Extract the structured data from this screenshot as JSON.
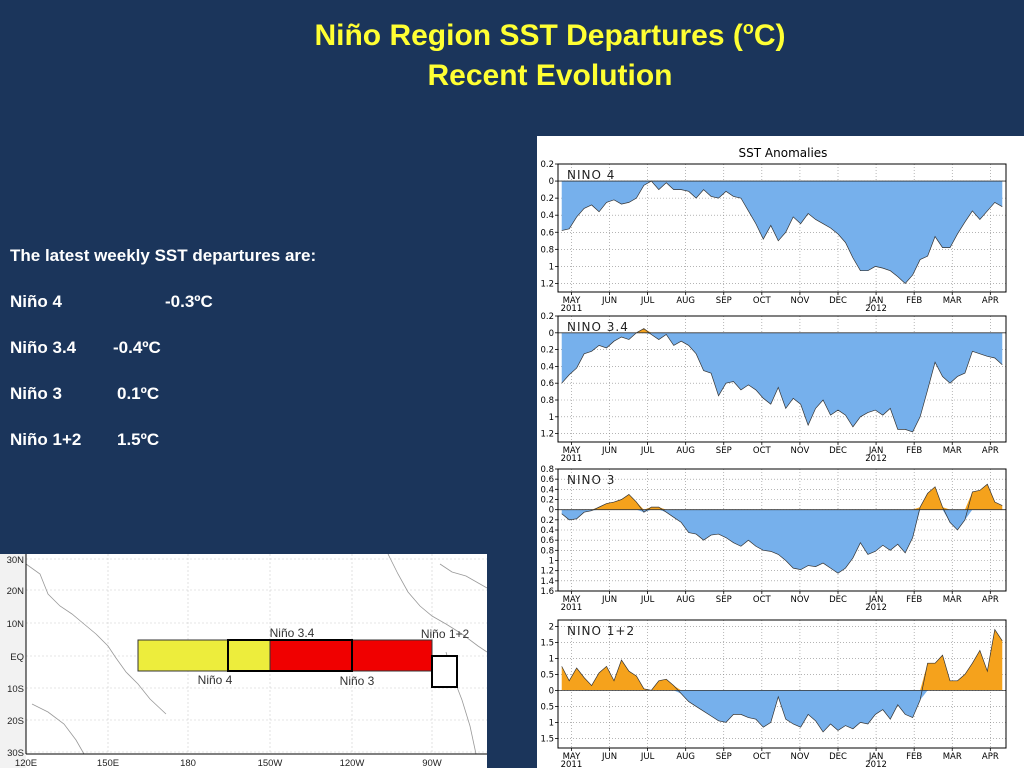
{
  "slide": {
    "title_main": "Niño Region SST Departures (",
    "title_sup": "o",
    "title_end": "C)",
    "subtitle": "Recent Evolution",
    "intro": "The latest weekly SST departures are:",
    "regions": [
      {
        "name": "Niño 4",
        "value": "-0.3ºC"
      },
      {
        "name": "Niño 3.4",
        "value": "-0.4ºC"
      },
      {
        "name": "Niño 3",
        "value": "0.1ºC"
      },
      {
        "name": "Niño 1+2",
        "value": "1.5ºC"
      }
    ]
  },
  "colors": {
    "positive": "#f5a21c",
    "negative": "#76b0ec",
    "background": "#1b355b",
    "title": "#ffff33"
  },
  "chart_data": [
    {
      "type": "area",
      "title": "SST Anomalies",
      "panel_label": "NINO 4",
      "x_ticks": [
        "MAY",
        "JUN",
        "JUL",
        "AUG",
        "SEP",
        "OCT",
        "NOV",
        "DEC",
        "JAN",
        "FEB",
        "MAR",
        "APR"
      ],
      "x_year_labels": [
        {
          "tick": "MAY",
          "year": "2011"
        },
        {
          "tick": "JAN",
          "year": "2012"
        }
      ],
      "y_ticks": [
        0.2,
        0,
        -0.2,
        -0.4,
        -0.6,
        -0.8,
        -1,
        -1.2
      ],
      "y_tick_labels": [
        "0.2",
        "0",
        "0.2",
        "0.4",
        "0.6",
        "0.8",
        "1",
        "1.2"
      ],
      "ylim": [
        -1.3,
        0.2
      ],
      "grid": true,
      "weeks": [
        "2011-05-04",
        "2012-04-25"
      ],
      "values": [
        -0.58,
        -0.56,
        -0.42,
        -0.32,
        -0.28,
        -0.36,
        -0.25,
        -0.22,
        -0.27,
        -0.25,
        -0.2,
        -0.05,
        0.0,
        -0.1,
        -0.02,
        -0.1,
        -0.1,
        -0.12,
        -0.2,
        -0.1,
        -0.18,
        -0.2,
        -0.12,
        -0.18,
        -0.2,
        -0.35,
        -0.5,
        -0.68,
        -0.52,
        -0.7,
        -0.6,
        -0.42,
        -0.5,
        -0.38,
        -0.45,
        -0.5,
        -0.55,
        -0.62,
        -0.72,
        -0.9,
        -1.05,
        -1.05,
        -1.0,
        -1.02,
        -1.05,
        -1.12,
        -1.2,
        -1.1,
        -0.92,
        -0.88,
        -0.65,
        -0.78,
        -0.78,
        -0.62,
        -0.48,
        -0.35,
        -0.45,
        -0.35,
        -0.25,
        -0.3
      ]
    },
    {
      "type": "area",
      "panel_label": "NINO 3.4",
      "x_ticks": [
        "MAY",
        "JUN",
        "JUL",
        "AUG",
        "SEP",
        "OCT",
        "NOV",
        "DEC",
        "JAN",
        "FEB",
        "MAR",
        "APR"
      ],
      "x_year_labels": [
        {
          "tick": "MAY",
          "year": "2011"
        },
        {
          "tick": "JAN",
          "year": "2012"
        }
      ],
      "y_ticks": [
        0.2,
        0,
        -0.2,
        -0.4,
        -0.6,
        -0.8,
        -1,
        -1.2
      ],
      "y_tick_labels": [
        "0.2",
        "0",
        "0.2",
        "0.4",
        "0.6",
        "0.8",
        "1",
        "1.2"
      ],
      "ylim": [
        -1.3,
        0.2
      ],
      "grid": true,
      "weeks": [
        "2011-05-04",
        "2012-04-25"
      ],
      "values": [
        -0.6,
        -0.5,
        -0.42,
        -0.25,
        -0.22,
        -0.15,
        -0.18,
        -0.1,
        -0.05,
        -0.08,
        0.0,
        0.05,
        -0.02,
        -0.08,
        -0.02,
        -0.15,
        -0.1,
        -0.15,
        -0.25,
        -0.45,
        -0.48,
        -0.75,
        -0.6,
        -0.58,
        -0.68,
        -0.62,
        -0.68,
        -0.78,
        -0.85,
        -0.65,
        -0.9,
        -0.78,
        -0.85,
        -1.1,
        -0.9,
        -0.8,
        -0.98,
        -0.92,
        -0.98,
        -1.12,
        -1.0,
        -0.95,
        -0.92,
        -0.98,
        -0.9,
        -1.15,
        -1.15,
        -1.18,
        -1.0,
        -0.68,
        -0.35,
        -0.52,
        -0.6,
        -0.52,
        -0.48,
        -0.22,
        -0.25,
        -0.28,
        -0.3,
        -0.38
      ]
    },
    {
      "type": "area",
      "panel_label": "NINO 3",
      "x_ticks": [
        "MAY",
        "JUN",
        "JUL",
        "AUG",
        "SEP",
        "OCT",
        "NOV",
        "DEC",
        "JAN",
        "FEB",
        "MAR",
        "APR"
      ],
      "x_year_labels": [
        {
          "tick": "MAY",
          "year": "2011"
        },
        {
          "tick": "JAN",
          "year": "2012"
        }
      ],
      "y_ticks": [
        0.8,
        0.6,
        0.4,
        0.2,
        0,
        -0.2,
        -0.4,
        -0.6,
        -0.8,
        -1,
        -1.2,
        -1.4,
        -1.6
      ],
      "y_tick_labels": [
        "0.8",
        "0.6",
        "0.4",
        "0.2",
        "0",
        "0.2",
        "0.4",
        "0.6",
        "0.8",
        "1",
        "1.2",
        "1.4",
        "1.6"
      ],
      "ylim": [
        -1.6,
        0.8
      ],
      "grid": true,
      "weeks": [
        "2011-05-04",
        "2012-04-25"
      ],
      "values": [
        -0.08,
        -0.2,
        -0.18,
        -0.05,
        -0.02,
        0.05,
        0.12,
        0.15,
        0.2,
        0.3,
        0.15,
        -0.05,
        0.05,
        0.05,
        -0.05,
        -0.15,
        -0.25,
        -0.45,
        -0.48,
        -0.6,
        -0.5,
        -0.48,
        -0.55,
        -0.65,
        -0.72,
        -0.6,
        -0.72,
        -0.8,
        -0.82,
        -0.88,
        -1.0,
        -1.15,
        -1.18,
        -1.1,
        -1.12,
        -1.05,
        -1.15,
        -1.25,
        -1.15,
        -0.95,
        -0.65,
        -0.88,
        -0.82,
        -0.7,
        -0.8,
        -0.68,
        -0.85,
        -0.55,
        0.05,
        0.32,
        0.45,
        0.05,
        -0.25,
        -0.4,
        -0.2,
        0.35,
        0.38,
        0.5,
        0.15,
        0.08
      ]
    },
    {
      "type": "area",
      "panel_label": "NINO 1+2",
      "x_ticks": [
        "MAY",
        "JUN",
        "JUL",
        "AUG",
        "SEP",
        "OCT",
        "NOV",
        "DEC",
        "JAN",
        "FEB",
        "MAR",
        "APR"
      ],
      "x_year_labels": [
        {
          "tick": "MAY",
          "year": "2011"
        },
        {
          "tick": "JAN",
          "year": "2012"
        }
      ],
      "y_ticks": [
        2,
        1.5,
        1,
        0.5,
        0,
        -0.5,
        -1,
        -1.5
      ],
      "y_tick_labels": [
        "2",
        "1.5",
        "1",
        "0.5",
        "0",
        "0.5",
        "1",
        "1.5"
      ],
      "ylim": [
        -1.8,
        2.2
      ],
      "grid": true,
      "weeks": [
        "2011-05-04",
        "2012-04-25"
      ],
      "values": [
        0.75,
        0.3,
        0.7,
        0.4,
        0.15,
        0.55,
        0.75,
        0.3,
        0.95,
        0.6,
        0.45,
        0.05,
        0.0,
        0.3,
        0.35,
        0.15,
        -0.1,
        -0.35,
        -0.5,
        -0.65,
        -0.8,
        -0.95,
        -1.0,
        -0.75,
        -0.75,
        -0.85,
        -0.9,
        -1.15,
        -1.0,
        -0.2,
        -0.9,
        -1.05,
        -1.15,
        -0.75,
        -0.95,
        -1.3,
        -1.05,
        -1.25,
        -1.1,
        -1.2,
        -1.0,
        -1.05,
        -0.75,
        -0.6,
        -0.9,
        -0.45,
        -0.75,
        -0.85,
        -0.3,
        0.85,
        0.85,
        1.1,
        0.3,
        0.3,
        0.5,
        0.85,
        1.25,
        0.6,
        1.9,
        1.55
      ]
    }
  ],
  "map": {
    "lat_labels": [
      "30N",
      "20N",
      "10N",
      "EQ",
      "10S",
      "20S",
      "30S"
    ],
    "lon_labels": [
      "120E",
      "150E",
      "180",
      "150W",
      "120W",
      "90W"
    ],
    "regions": [
      {
        "label": "Niño 4",
        "color": "#eded3c"
      },
      {
        "label": "Niño 3.4",
        "color": "#eded3c"
      },
      {
        "label": "Niño 3",
        "color": "#f00000"
      },
      {
        "label": "Niño 1+2",
        "color": "#ffffff"
      }
    ]
  }
}
